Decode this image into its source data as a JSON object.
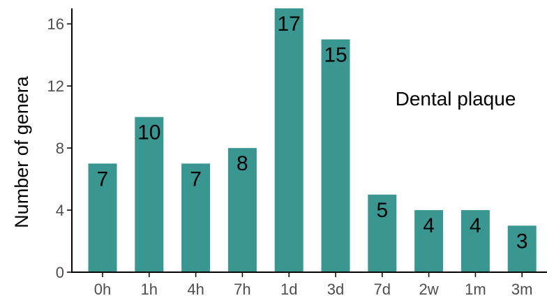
{
  "chart_data": {
    "type": "bar",
    "title": "",
    "xlabel": "",
    "ylabel": "Number of genera",
    "categories": [
      "0h",
      "1h",
      "4h",
      "7h",
      "1d",
      "3d",
      "7d",
      "2w",
      "1m",
      "3m"
    ],
    "values": [
      7,
      10,
      7,
      8,
      17,
      15,
      5,
      4,
      4,
      3
    ],
    "data_labels": [
      "7",
      "10",
      "7",
      "8",
      "17",
      "15",
      "5",
      "4",
      "4",
      "3"
    ],
    "ylim": [
      0,
      17
    ],
    "y_ticks": [
      0,
      4,
      8,
      12,
      16
    ],
    "y_tick_labels": [
      "0",
      "4",
      "8",
      "12",
      "16"
    ],
    "grid": false,
    "legend": "none",
    "annotation": "Dental plaque",
    "colors": {
      "bar": "#3a9691",
      "axis": "#000000",
      "tick_label": "#4d4d4d",
      "text": "#000000"
    }
  }
}
